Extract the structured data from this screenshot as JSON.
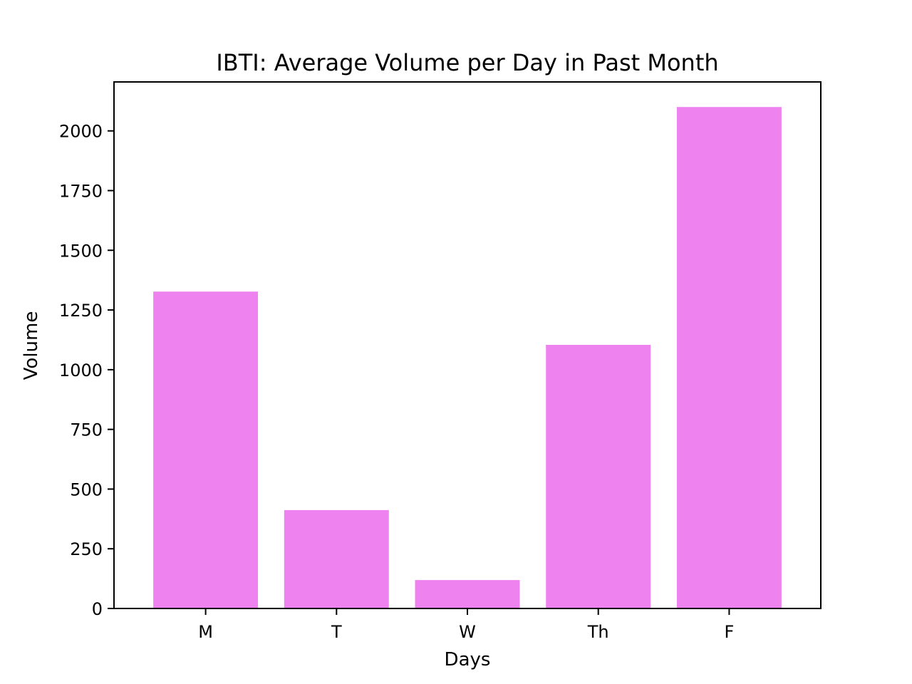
{
  "chart_data": {
    "type": "bar",
    "title": "IBTI: Average Volume per Day in Past Month",
    "xlabel": "Days",
    "ylabel": "Volume",
    "categories": [
      "M",
      "T",
      "W",
      "Th",
      "F"
    ],
    "values": [
      1327,
      412,
      119,
      1104,
      2100
    ],
    "ylim": [
      0,
      2205
    ],
    "yticks": [
      0,
      250,
      500,
      750,
      1000,
      1250,
      1500,
      1750,
      2000
    ],
    "bar_color": "#ee82ee",
    "grid": false,
    "legend": "none"
  }
}
